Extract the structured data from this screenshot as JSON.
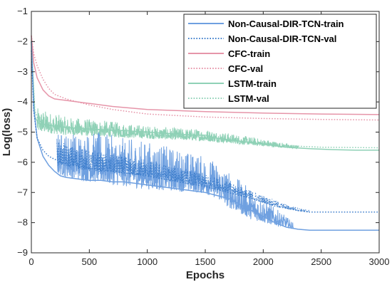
{
  "chart_data": {
    "type": "line",
    "xlabel": "Epochs",
    "ylabel": "Log(loss)",
    "xlim": [
      0,
      3000
    ],
    "ylim": [
      -9,
      -1
    ],
    "x_ticks": [
      0,
      500,
      1000,
      1500,
      2000,
      2500,
      3000
    ],
    "y_ticks": [
      -1,
      -2,
      -3,
      -4,
      -5,
      -6,
      -7,
      -8,
      -9
    ],
    "grid": false,
    "legend_position": "top-right",
    "series": [
      {
        "name": "Non-Causal-DIR-TCN-train",
        "color": "#6fa0e0",
        "style": "solid",
        "x": [
          0,
          20,
          50,
          100,
          150,
          200,
          250,
          300,
          400,
          500,
          600,
          700,
          800,
          900,
          1000,
          1100,
          1200,
          1300,
          1400,
          1500,
          1600,
          1700,
          1800,
          1900,
          2000,
          2100,
          2200,
          2300,
          2400,
          2500,
          2600,
          2700,
          2800,
          2900,
          3000
        ],
        "values": [
          -2.0,
          -4.2,
          -5.2,
          -5.8,
          -6.1,
          -6.3,
          -6.45,
          -6.5,
          -6.55,
          -6.6,
          -6.6,
          -6.65,
          -6.65,
          -6.7,
          -6.75,
          -6.8,
          -6.85,
          -6.9,
          -6.95,
          -7.0,
          -7.1,
          -7.2,
          -7.4,
          -7.6,
          -7.8,
          -8.0,
          -8.15,
          -8.22,
          -8.25,
          -8.25,
          -8.25,
          -8.25,
          -8.25,
          -8.25,
          -8.25
        ],
        "fluctuation": {
          "x": [
            220,
            400,
            600,
            800,
            1000,
            1200,
            1400,
            1500,
            1600,
            1700,
            1800,
            1900,
            2000,
            2100,
            2200,
            2260
          ],
          "min": [
            -6.4,
            -6.6,
            -6.7,
            -6.8,
            -6.9,
            -6.95,
            -7.0,
            -7.05,
            -7.2,
            -7.5,
            -7.7,
            -7.9,
            -8.0,
            -8.1,
            -8.15,
            -8.2
          ],
          "max": [
            -5.0,
            -5.0,
            -5.0,
            -5.2,
            -5.3,
            -5.5,
            -5.7,
            -5.8,
            -6.0,
            -6.3,
            -6.6,
            -6.9,
            -7.2,
            -7.5,
            -7.8,
            -8.0
          ]
        }
      },
      {
        "name": "Non-Causal-DIR-TCN-val",
        "color": "#3f7fcc",
        "style": "dotted",
        "x": [
          0,
          20,
          50,
          100,
          150,
          200,
          300,
          500,
          800,
          1000,
          1200,
          1500,
          1700,
          1900,
          2100,
          2300,
          2400,
          2500,
          3000
        ],
        "values": [
          -2.3,
          -4.3,
          -5.2,
          -5.6,
          -5.8,
          -5.9,
          -6.05,
          -6.2,
          -6.35,
          -6.45,
          -6.6,
          -6.8,
          -7.0,
          -7.2,
          -7.45,
          -7.6,
          -7.65,
          -7.65,
          -7.65
        ],
        "fluctuation": {
          "x": [
            220,
            500,
            800,
            1100,
            1400,
            1600,
            1800,
            2000,
            2200,
            2400
          ],
          "min": [
            -6.1,
            -6.3,
            -6.4,
            -6.55,
            -6.75,
            -6.9,
            -7.1,
            -7.35,
            -7.55,
            -7.65
          ],
          "max": [
            -5.3,
            -5.6,
            -5.8,
            -6.0,
            -6.3,
            -6.5,
            -6.8,
            -7.1,
            -7.4,
            -7.6
          ]
        }
      },
      {
        "name": "CFC-train",
        "color": "#e695a9",
        "style": "solid",
        "x": [
          0,
          20,
          50,
          100,
          150,
          200,
          300,
          500,
          700,
          1000,
          1500,
          2000,
          2500,
          3000
        ],
        "values": [
          -1.8,
          -2.7,
          -3.2,
          -3.6,
          -3.8,
          -3.9,
          -3.95,
          -4.05,
          -4.15,
          -4.25,
          -4.32,
          -4.37,
          -4.4,
          -4.42
        ]
      },
      {
        "name": "CFC-val",
        "color": "#e695a9",
        "style": "dotted",
        "x": [
          0,
          20,
          50,
          100,
          150,
          200,
          300,
          500,
          700,
          1000,
          1500,
          2000,
          2500,
          3000
        ],
        "values": [
          -1.8,
          -2.4,
          -2.8,
          -3.25,
          -3.55,
          -3.75,
          -3.9,
          -4.1,
          -4.25,
          -4.4,
          -4.5,
          -4.55,
          -4.58,
          -4.6
        ]
      },
      {
        "name": "LSTM-train",
        "color": "#8fd1b6",
        "style": "solid",
        "x": [
          0,
          30,
          60,
          100,
          200,
          300,
          500,
          800,
          1000,
          1200,
          1400,
          1500,
          1600,
          1800,
          2000,
          2200,
          2400,
          2600,
          2800,
          3000
        ],
        "values": [
          -2.0,
          -4.5,
          -4.7,
          -4.75,
          -4.8,
          -4.85,
          -4.9,
          -4.95,
          -5.0,
          -5.05,
          -5.1,
          -5.1,
          -5.2,
          -5.3,
          -5.4,
          -5.5,
          -5.55,
          -5.58,
          -5.6,
          -5.6
        ],
        "fluctuation": {
          "x": [
            50,
            300,
            600,
            900,
            1200,
            1500,
            1800,
            2100,
            2300
          ],
          "min": [
            -5.0,
            -5.1,
            -5.15,
            -5.2,
            -5.25,
            -5.3,
            -5.4,
            -5.5,
            -5.55
          ],
          "max": [
            -4.2,
            -4.5,
            -4.6,
            -4.75,
            -4.85,
            -4.9,
            -5.1,
            -5.3,
            -5.45
          ]
        }
      },
      {
        "name": "LSTM-val",
        "color": "#8fd1b6",
        "style": "dotted",
        "x": [
          0,
          30,
          60,
          100,
          200,
          500,
          800,
          1000,
          1400,
          1600,
          1800,
          2000,
          2200,
          2500,
          3000
        ],
        "values": [
          -2.0,
          -4.3,
          -4.6,
          -4.7,
          -4.8,
          -4.9,
          -5.0,
          -5.1,
          -5.15,
          -5.2,
          -5.3,
          -5.4,
          -5.45,
          -5.5,
          -5.52
        ]
      }
    ]
  }
}
